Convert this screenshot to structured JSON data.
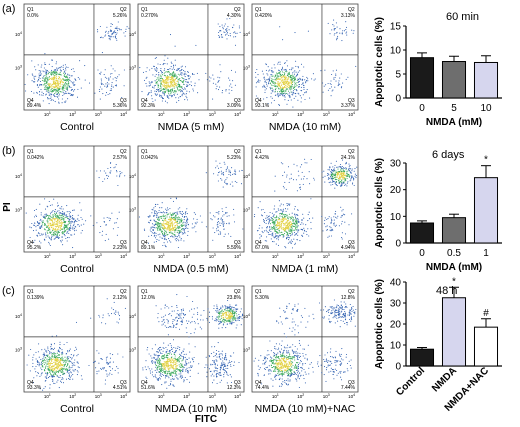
{
  "panel_labels": [
    "(a)",
    "(b)",
    "(c)"
  ],
  "y_axis_title": "PI",
  "x_axis_title": "FITC",
  "quadrant_names": [
    "Q1",
    "Q2",
    "Q3",
    "Q4"
  ],
  "log_ticks": [
    "10",
    "10",
    "10",
    "10",
    "10"
  ],
  "log_exps": [
    "0",
    "1",
    "2",
    "3",
    "4"
  ],
  "colors": {
    "bar_dark": "#1a1a1a",
    "bar_gray": "#6e6e6e",
    "bar_light": "#d6d6ee",
    "bar_white": "#ffffff",
    "dot_blue": "#2e5fb0",
    "dot_green": "#3aa85a",
    "dot_yellow": "#e2d040"
  },
  "chart_data": [
    {
      "type": "scatter",
      "name": "flow_cytometry",
      "rows": [
        {
          "panels": [
            {
              "label": "Control",
              "q1": "0.0%",
              "q2": "5.26%",
              "q3": "5.36%",
              "q4": "89.4%"
            },
            {
              "label": "NMDA (5 mM)",
              "q1": "0.270%",
              "q2": "4.30%",
              "q3": "3.09%",
              "q4": "92.3%"
            },
            {
              "label": "NMDA (10 mM)",
              "q1": "0.420%",
              "q2": "3.13%",
              "q3": "3.37%",
              "q4": "93.1%"
            }
          ]
        },
        {
          "panels": [
            {
              "label": "Control",
              "q1": "0.042%",
              "q2": "2.57%",
              "q3": "2.23%",
              "q4": "95.2%"
            },
            {
              "label": "NMDA (0.5 mM)",
              "q1": "0.042%",
              "q2": "5.23%",
              "q3": "5.59%",
              "q4": "89.1%"
            },
            {
              "label": "NMDA (1 mM)",
              "q1": "4.42%",
              "q2": "24.1%",
              "q3": "4.94%",
              "q4": "67.0%"
            }
          ]
        },
        {
          "panels": [
            {
              "label": "Control",
              "q1": "0.139%",
              "q2": "2.12%",
              "q3": "4.51%",
              "q4": "93.3%"
            },
            {
              "label": "NMDA (10 mM)",
              "q1": "12.0%",
              "q2": "23.8%",
              "q3": "12.3%",
              "q4": "51.6%"
            },
            {
              "label": "NMDA (10 mM)+NAC",
              "q1": "5.30%",
              "q2": "12.8%",
              "q3": "7.44%",
              "q4": "74.4%"
            }
          ]
        }
      ]
    },
    {
      "type": "bar",
      "title": "60 min",
      "ylabel": "Apoptotic cells (%)",
      "xlabel": "NMDA (mM)",
      "categories": [
        "0",
        "5",
        "10"
      ],
      "values": [
        8.4,
        7.6,
        7.4
      ],
      "errors": [
        1.0,
        1.1,
        1.4
      ],
      "fills": [
        "#1a1a1a",
        "#6e6e6e",
        "#d6d6ee"
      ],
      "yticks": [
        "0",
        "5",
        "10",
        "15"
      ],
      "ylim": [
        0,
        15
      ],
      "significance": [
        "",
        "",
        ""
      ],
      "rotate_labels": false
    },
    {
      "type": "bar",
      "title": "6 days",
      "ylabel": "Apoptotic cells (%)",
      "xlabel": "NMDA (mM)",
      "categories": [
        "0",
        "0.5",
        "1"
      ],
      "values": [
        7.5,
        9.5,
        24.5
      ],
      "errors": [
        0.8,
        1.3,
        4.5
      ],
      "fills": [
        "#1a1a1a",
        "#6e6e6e",
        "#d6d6ee"
      ],
      "yticks": [
        "0",
        "10",
        "20",
        "30"
      ],
      "ylim": [
        0,
        30
      ],
      "significance": [
        "",
        "",
        "*"
      ],
      "rotate_labels": false
    },
    {
      "type": "bar",
      "title": "48 h",
      "ylabel": "Apoptotic cells (%)",
      "xlabel": "",
      "categories": [
        "Control",
        "NMDA",
        "NMDA+NAC"
      ],
      "values": [
        8.0,
        32.5,
        18.5
      ],
      "errors": [
        0.8,
        5.0,
        4.0
      ],
      "fills": [
        "#1a1a1a",
        "#d6d6ee",
        "#ffffff"
      ],
      "yticks": [
        "0",
        "10",
        "20",
        "30",
        "40"
      ],
      "ylim": [
        0,
        40
      ],
      "significance": [
        "",
        "*",
        "#"
      ],
      "rotate_labels": true
    }
  ]
}
